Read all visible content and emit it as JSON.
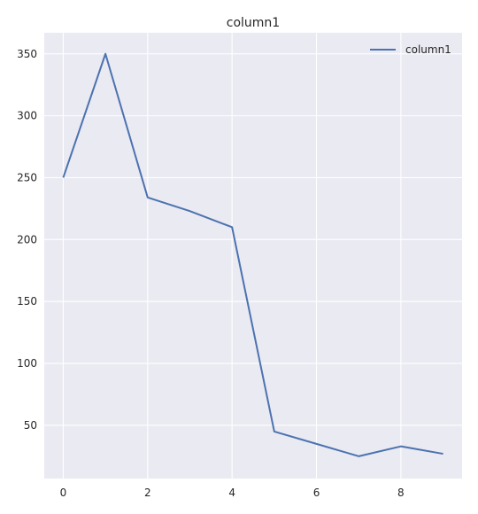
{
  "chart_data": {
    "type": "line",
    "title": "column1",
    "xlabel": "",
    "ylabel": "",
    "x": [
      0,
      1,
      2,
      3,
      4,
      5,
      6,
      7,
      8,
      9
    ],
    "series": [
      {
        "name": "column1",
        "values": [
          250,
          350,
          234,
          223,
          210,
          45,
          35,
          25,
          33,
          27
        ],
        "color": "#4c72b0"
      }
    ],
    "xlim": [
      -0.45,
      9.45
    ],
    "ylim": [
      7,
      367
    ],
    "xticks": [
      0,
      2,
      4,
      6,
      8
    ],
    "yticks": [
      50,
      100,
      150,
      200,
      250,
      300,
      350
    ],
    "grid": true,
    "legend_position": "top-right",
    "background_color": "#eaeaf2",
    "grid_color": "#ffffff"
  }
}
